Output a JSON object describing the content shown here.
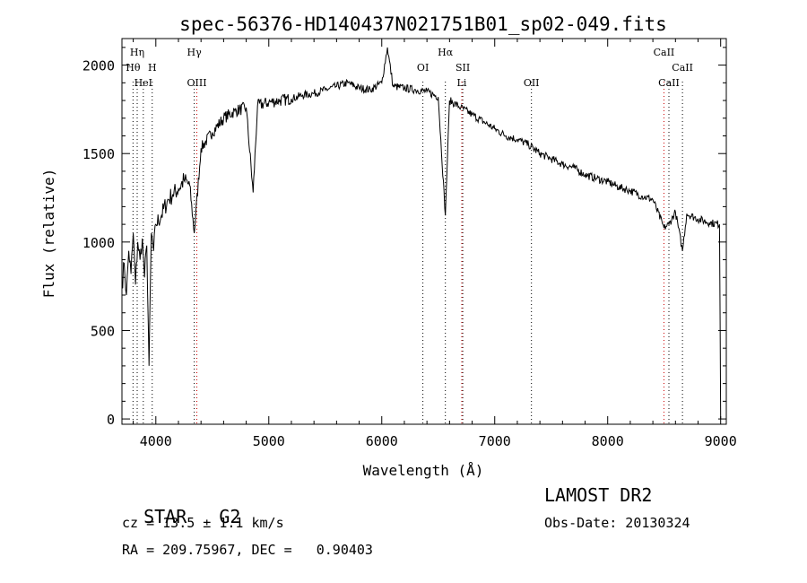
{
  "chart_data": {
    "type": "line",
    "title": "spec-56376-HD140437N021751B01_sp02-049.fits",
    "xlabel": "Wavelength (Å)",
    "ylabel": "Flux (relative)",
    "xlim": [
      3700,
      9050
    ],
    "ylim": [
      -30,
      2150
    ],
    "x_ticks": [
      4000,
      5000,
      6000,
      7000,
      8000,
      9000
    ],
    "y_ticks": [
      0,
      500,
      1000,
      1500,
      2000
    ],
    "grid": false,
    "series": [
      {
        "x": [
          3700,
          3720,
          3740,
          3760,
          3780,
          3800,
          3820,
          3840,
          3860,
          3880,
          3900,
          3920,
          3940,
          3960,
          3980,
          4000,
          4050,
          4100,
          4150,
          4200,
          4250,
          4300,
          4340,
          4400,
          4500,
          4600,
          4700,
          4800,
          4861,
          4900,
          5000,
          5100,
          5200,
          5300,
          5400,
          5500,
          5600,
          5700,
          5800,
          5900,
          6000,
          6050,
          6100,
          6200,
          6300,
          6400,
          6500,
          6563,
          6600,
          6700,
          6800,
          6900,
          7000,
          7100,
          7200,
          7300,
          7400,
          7500,
          7600,
          7700,
          7800,
          7900,
          8000,
          8100,
          8200,
          8300,
          8400,
          8498,
          8542,
          8600,
          8662,
          8700,
          8800,
          8900,
          8990,
          9000
        ],
        "y": [
          750,
          880,
          700,
          950,
          820,
          1050,
          760,
          1000,
          900,
          1020,
          800,
          980,
          300,
          1050,
          950,
          1100,
          1150,
          1230,
          1270,
          1300,
          1350,
          1320,
          1050,
          1530,
          1620,
          1700,
          1740,
          1760,
          1280,
          1770,
          1790,
          1800,
          1810,
          1830,
          1840,
          1860,
          1880,
          1900,
          1870,
          1860,
          1900,
          2100,
          1880,
          1870,
          1860,
          1850,
          1820,
          1150,
          1800,
          1760,
          1720,
          1680,
          1640,
          1600,
          1580,
          1550,
          1500,
          1470,
          1440,
          1420,
          1380,
          1360,
          1340,
          1310,
          1290,
          1260,
          1240,
          1080,
          1100,
          1170,
          950,
          1160,
          1130,
          1110,
          1100,
          0
        ]
      }
    ],
    "line_labels": [
      {
        "text": "Hη",
        "wavelength": 3835,
        "row": 0
      },
      {
        "text": "Hθ",
        "wavelength": 3798,
        "row": 1
      },
      {
        "text": "H",
        "wavelength": 3968,
        "row": 1
      },
      {
        "text": "HeI",
        "wavelength": 3889,
        "row": 2
      },
      {
        "text": "Hγ",
        "wavelength": 4340,
        "row": 0
      },
      {
        "text": "OIII",
        "wavelength": 4363,
        "row": 2
      },
      {
        "text": "OI",
        "wavelength": 6364,
        "row": 1
      },
      {
        "text": "Hα",
        "wavelength": 6563,
        "row": 0
      },
      {
        "text": "SII",
        "wavelength": 6717,
        "row": 1
      },
      {
        "text": "Li",
        "wavelength": 6708,
        "row": 2
      },
      {
        "text": "OII",
        "wavelength": 7325,
        "row": 2
      },
      {
        "text": "CaII",
        "wavelength": 8498,
        "row": 0
      },
      {
        "text": "CaII",
        "wavelength": 8662,
        "row": 1
      },
      {
        "text": "CaII",
        "wavelength": 8542,
        "row": 2
      }
    ],
    "marker_lines": [
      {
        "wavelength": 3798,
        "color": "#000000"
      },
      {
        "wavelength": 3835,
        "color": "#000000"
      },
      {
        "wavelength": 3889,
        "color": "#000000"
      },
      {
        "wavelength": 3968,
        "color": "#000000"
      },
      {
        "wavelength": 4340,
        "color": "#000000"
      },
      {
        "wavelength": 4363,
        "color": "#cc0000"
      },
      {
        "wavelength": 6364,
        "color": "#000000"
      },
      {
        "wavelength": 6563,
        "color": "#000000"
      },
      {
        "wavelength": 6708,
        "color": "#cc0000"
      },
      {
        "wavelength": 6717,
        "color": "#000000"
      },
      {
        "wavelength": 7325,
        "color": "#000000"
      },
      {
        "wavelength": 8498,
        "color": "#cc0000"
      },
      {
        "wavelength": 8542,
        "color": "#000000"
      },
      {
        "wavelength": 8662,
        "color": "#000000"
      }
    ]
  },
  "info": {
    "object_class": "STAR",
    "subclass": "G2",
    "survey": "LAMOST DR2",
    "cz": "cz = 13.5 ± 1.1 km/s",
    "obs_date": "Obs-Date: 20130324",
    "coords": "RA = 209.75967, DEC =   0.90403"
  }
}
